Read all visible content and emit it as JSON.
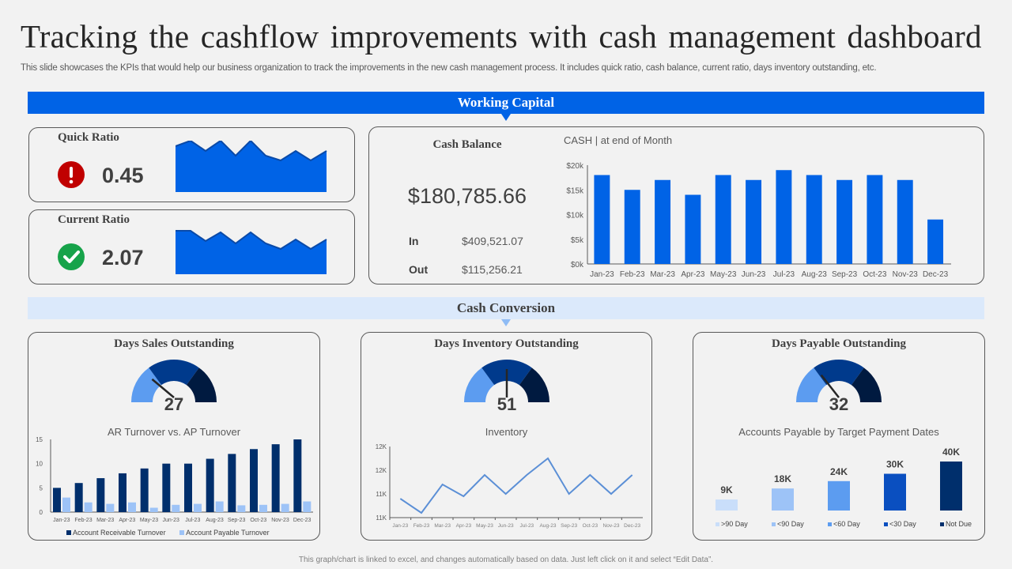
{
  "header": {
    "title": "Tracking the cashflow improvements with cash management dashboard",
    "subtitle": "This slide showcases the KPIs that would help our business organization to track the improvements in the new cash management process. It includes quick ratio, cash balance, current ratio, days inventory outstanding, etc."
  },
  "sections": {
    "working_capital": "Working Capital",
    "cash_conversion": "Cash Conversion"
  },
  "quick_ratio": {
    "title": "Quick Ratio",
    "value": "0.45",
    "status_icon": "alert-icon",
    "status_color": "#c00000"
  },
  "current_ratio": {
    "title": "Current Ratio",
    "value": "2.07",
    "status_icon": "check-icon",
    "status_color": "#17a34a"
  },
  "cash_balance": {
    "title": "Cash Balance",
    "total": "$180,785.66",
    "in_label": "In",
    "in_value": "$409,521.07",
    "out_label": "Out",
    "out_value": "$115,256.21"
  },
  "dso": {
    "title": "Days Sales Outstanding",
    "value": "27"
  },
  "dio": {
    "title": "Days Inventory Outstanding",
    "value": "51"
  },
  "dpo": {
    "title": "Days Payable Outstanding",
    "value": "32"
  },
  "colors": {
    "accent": "#0063e6",
    "light_band": "#dbe9fb",
    "navy": "#002f6c",
    "light_blue": "#9dc3f7"
  },
  "footer": "This graph/chart is linked to excel, and changes automatically based on data. Just left click on it and select “Edit Data”.",
  "chart_data": [
    {
      "id": "cash_end_of_month",
      "type": "bar",
      "title": "CASH | at end of Month",
      "categories": [
        "Jan-23",
        "Feb-23",
        "Mar-23",
        "Apr-23",
        "May-23",
        "Jun-23",
        "Jul-23",
        "Aug-23",
        "Sep-23",
        "Oct-23",
        "Nov-23",
        "Dec-23"
      ],
      "values": [
        18000,
        15000,
        17000,
        14000,
        18000,
        17000,
        19000,
        18000,
        17000,
        18000,
        17000,
        9000
      ],
      "yticks": [
        "$0k",
        "$5k",
        "$10k",
        "$15k",
        "$20k"
      ],
      "ylim": [
        0,
        20000
      ]
    },
    {
      "id": "ar_vs_ap_turnover",
      "type": "bar",
      "title": "AR Turnover  vs.  AP Turnover",
      "categories": [
        "Jan-23",
        "Feb-23",
        "Mar-23",
        "Apr-23",
        "May-23",
        "Jun-23",
        "Jul-23",
        "Aug-23",
        "Sep-23",
        "Oct-23",
        "Nov-23",
        "Dec-23"
      ],
      "series": [
        {
          "name": "Account Receivable Turnover",
          "color": "#002f6c",
          "values": [
            5,
            6,
            7,
            8,
            9,
            10,
            10,
            11,
            12,
            13,
            14,
            15
          ]
        },
        {
          "name": "Account Payable Turnover",
          "color": "#9dc3f7",
          "values": [
            3,
            2,
            1.7,
            2,
            0.9,
            1.5,
            1.7,
            2.2,
            1.4,
            1.5,
            1.7,
            2.2
          ]
        }
      ],
      "yticks": [
        "0",
        "5",
        "10",
        "15"
      ],
      "ylim": [
        0,
        15
      ],
      "legend_position": "bottom"
    },
    {
      "id": "inventory",
      "type": "line",
      "title": "Inventory",
      "categories": [
        "Jan-23",
        "Feb-23",
        "Mar-23",
        "Apr-23",
        "May-23",
        "Jun-23",
        "Jul-23",
        "Aug-23",
        "Sep-23",
        "Oct-23",
        "Nov-23",
        "Dec-23"
      ],
      "values": [
        11200,
        10900,
        11500,
        11250,
        11700,
        11300,
        11700,
        12050,
        11300,
        11700,
        11300,
        11700
      ],
      "yticks": [
        "11K",
        "11K",
        "12K",
        "12K"
      ],
      "ylim": [
        10800,
        12300
      ]
    },
    {
      "id": "ap_by_target_dates",
      "type": "bar",
      "title": "Accounts Payable by Target  Payment Dates",
      "categories": [
        ">90 Day",
        "<90 Day",
        "<60 Day",
        "<30 Day",
        "Not Due"
      ],
      "values": [
        9,
        18,
        24,
        30,
        40
      ],
      "labels": [
        "9K",
        "18K",
        "24K",
        "30K",
        "40K"
      ],
      "colors": [
        "#c9defa",
        "#9dc3f7",
        "#5c9cf0",
        "#0a4fc0",
        "#002f6c"
      ],
      "legend_position": "bottom"
    }
  ]
}
